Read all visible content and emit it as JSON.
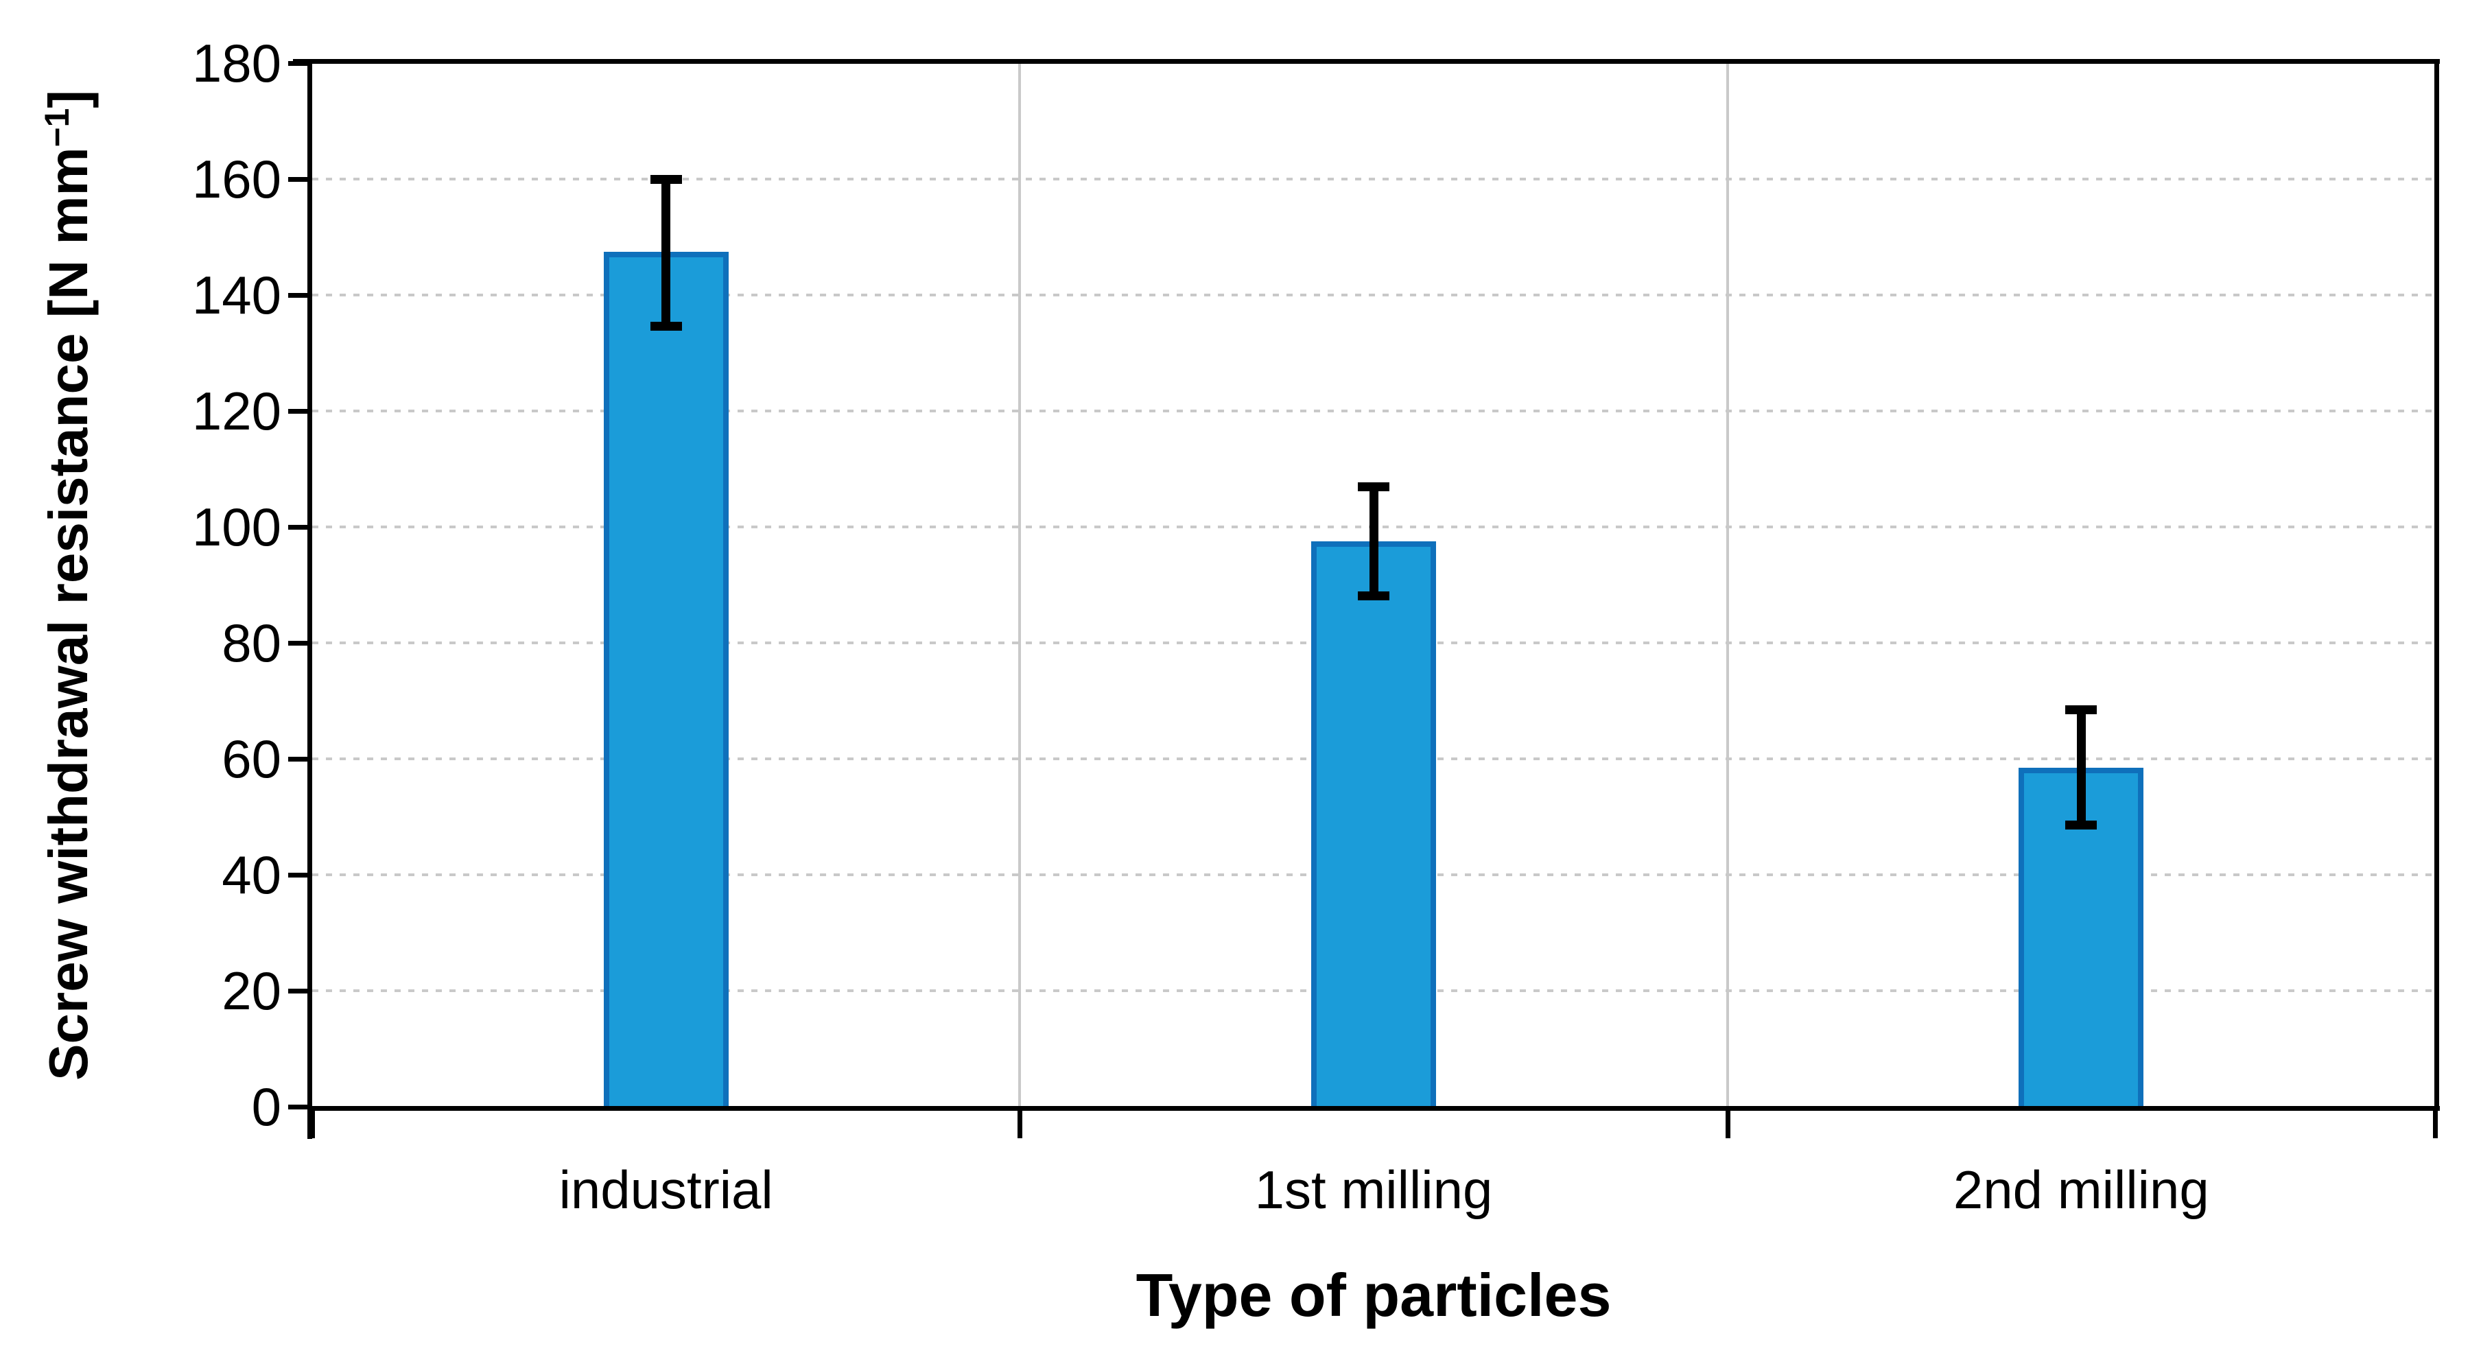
{
  "chart_data": {
    "type": "bar",
    "title": "",
    "xlabel": "Type of particles",
    "ylabel": "Screw withdrawal resistance [N mm⁻¹]",
    "ylabel_parts": {
      "main": "Screw withdrawal resistance [N mm",
      "sup": "−1",
      "end": "]"
    },
    "categories": [
      "industrial",
      "1st milling",
      "2nd milling"
    ],
    "values": [
      147.5,
      97.5,
      58.5
    ],
    "error_low": [
      134.5,
      88,
      48.5
    ],
    "error_high": [
      160,
      107,
      68.5
    ],
    "ylim": [
      0,
      180
    ],
    "ytick_step": 20,
    "yticks": [
      0,
      20,
      40,
      60,
      80,
      100,
      120,
      140,
      160,
      180
    ],
    "grid": "horizontal dotted gridlines every 20 units; vertical solid separators between categories; closed black plot frame",
    "legend": "none",
    "colors": {
      "bar_fill": "#1b9cd9",
      "bar_border": "#0f70bb",
      "gridline": "#c9c9c9",
      "axis": "#000000",
      "text": "#000000",
      "background": "#ffffff"
    }
  }
}
